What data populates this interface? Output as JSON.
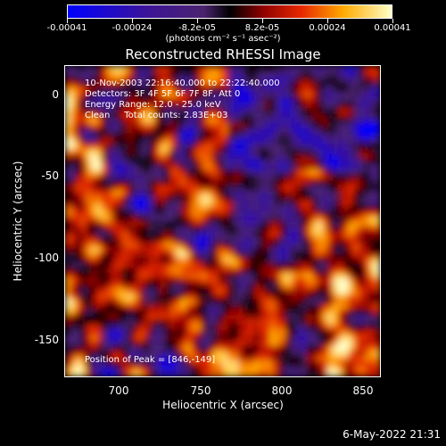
{
  "colorbar": {
    "ticks": [
      "-0.00041",
      "-0.00024",
      "-8.2e-05",
      "8.2e-05",
      "0.00024",
      "0.00041"
    ],
    "unit": "(photons cm⁻² s⁻¹ asec⁻²)"
  },
  "title": "Reconstructed RHESSI Image",
  "annotations": {
    "time": "10-Nov-2003 22:16:40.000 to 22:22:40.000",
    "detectors": "Detectors: 3F 4F 5F 6F 7F 8F, Att 0",
    "energy": "Energy Range: 12.0 - 25.0 keV",
    "method": "Clean     Total counts: 2.83E+03",
    "peak": "Position of Peak = [846,-149]"
  },
  "axes": {
    "xlabel": "Heliocentric X (arcsec)",
    "ylabel": "Heliocentric Y (arcsec)",
    "xticks": [
      "700",
      "750",
      "800",
      "850"
    ],
    "yticks": [
      "0",
      "-50",
      "-100",
      "-150"
    ],
    "xlim": [
      666,
      861
    ],
    "ylim": [
      -174,
      17
    ]
  },
  "timestamp": "6-May-2022 21:31"
}
